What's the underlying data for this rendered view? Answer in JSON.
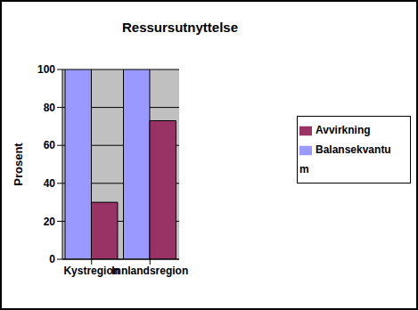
{
  "chart_data": {
    "type": "bar",
    "title": "Ressursutnyttelse",
    "y_label": "Prosent",
    "categories": [
      "Kystregion",
      "Innlandsregion"
    ],
    "series": [
      {
        "name": "Balansekvantum",
        "color": "#9999FF",
        "values": [
          100,
          100
        ]
      },
      {
        "name": "Avvirkning",
        "color": "#993366",
        "values": [
          30,
          73
        ]
      }
    ],
    "ylim": [
      0,
      100
    ],
    "yticks": [
      0,
      20,
      40,
      60,
      80,
      100
    ],
    "grid": true,
    "legend": "right"
  }
}
